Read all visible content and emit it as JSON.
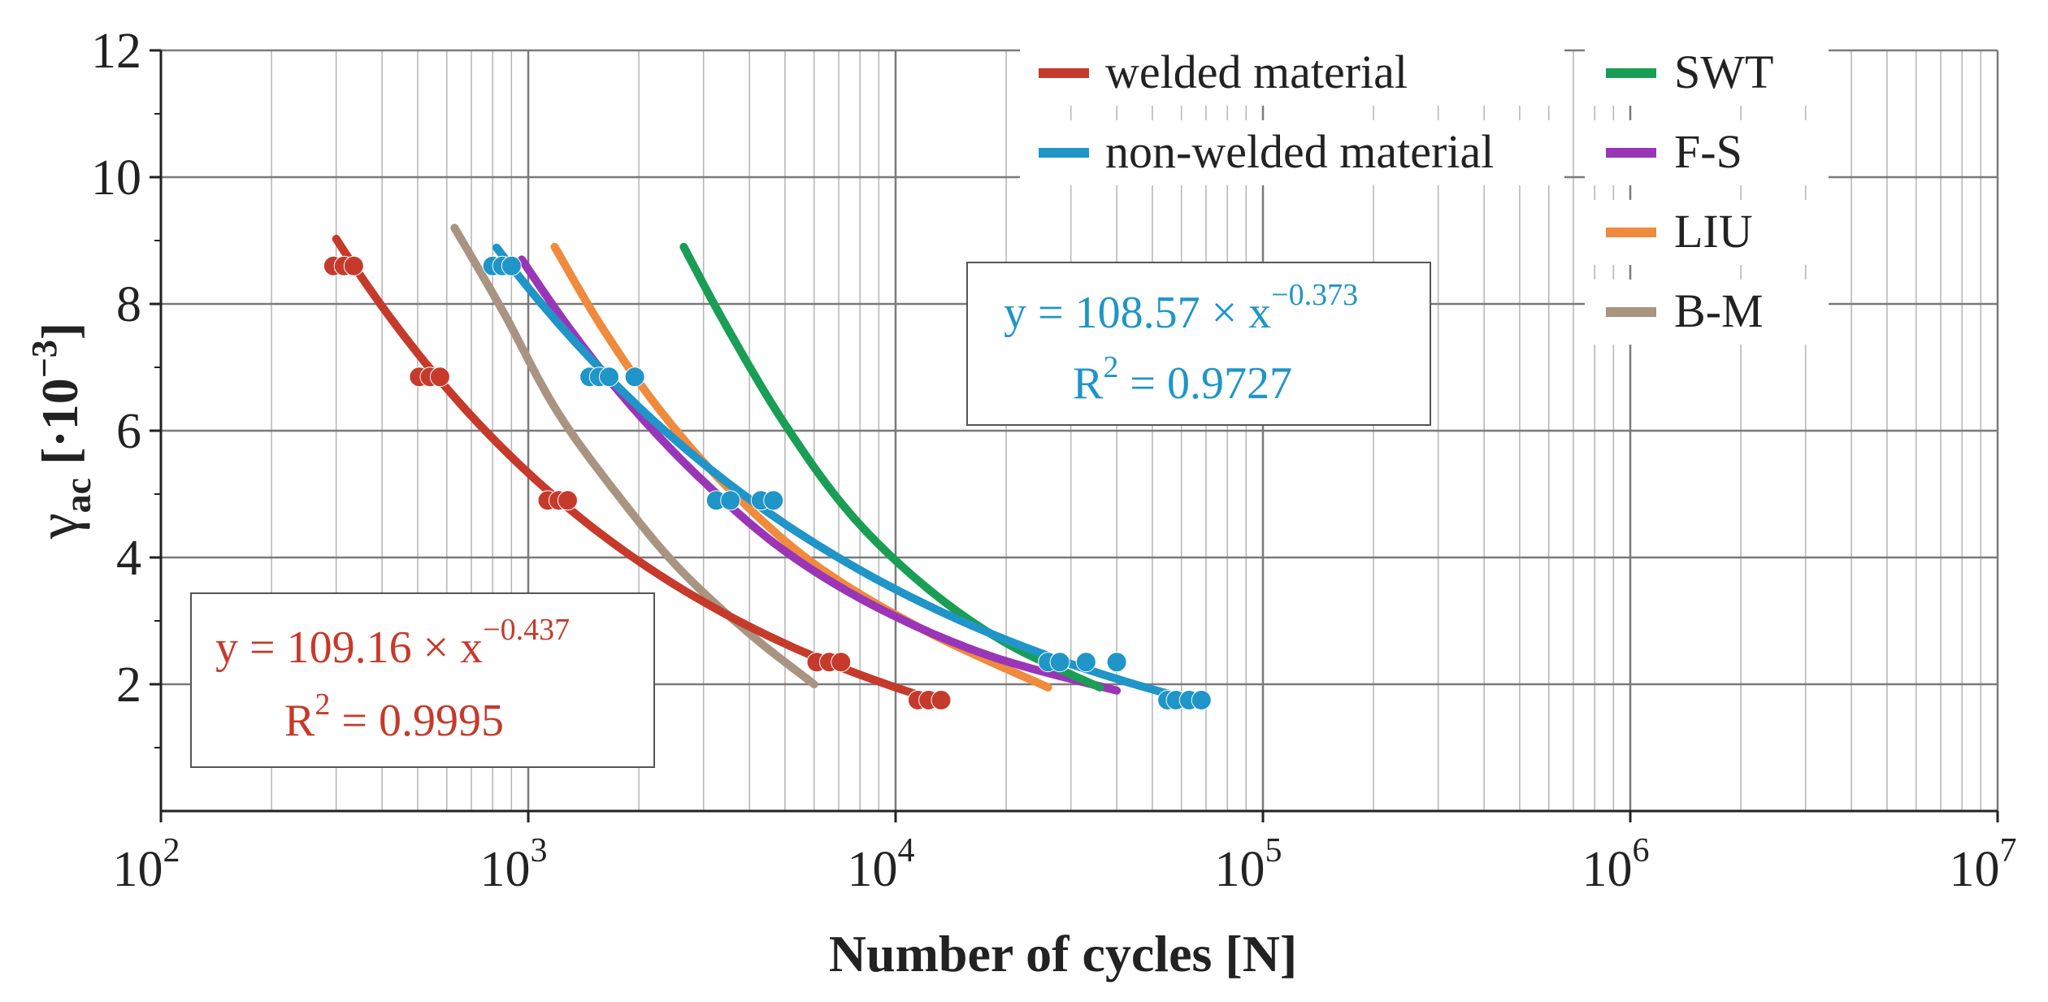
{
  "chart_data": {
    "type": "line",
    "xlabel": "Number of cycles [N]",
    "ylabel_main": "γ",
    "ylabel_sub": "ac",
    "ylabel_units": " [·10",
    "ylabel_exp": "−3",
    "ylabel_close": "]",
    "xscale": "log",
    "xlim": [
      100,
      10000000
    ],
    "ylim": [
      0,
      12
    ],
    "grid": true,
    "legend_position": "top-right",
    "x_ticks": [
      {
        "value": 100,
        "base": "10",
        "exp": "2"
      },
      {
        "value": 1000,
        "base": "10",
        "exp": "3"
      },
      {
        "value": 10000,
        "base": "10",
        "exp": "4"
      },
      {
        "value": 100000,
        "base": "10",
        "exp": "5"
      },
      {
        "value": 1000000,
        "base": "10",
        "exp": "6"
      },
      {
        "value": 10000000,
        "base": "10",
        "exp": "7"
      }
    ],
    "y_ticks": [
      2,
      4,
      6,
      8,
      10,
      12
    ],
    "series": [
      {
        "name": "welded material",
        "color": "#c63a2b",
        "fit": {
          "a": 109.16,
          "b": -0.437,
          "x_range": [
            300,
            13500
          ]
        },
        "points": [
          {
            "x": 295,
            "y": 8.6
          },
          {
            "x": 315,
            "y": 8.6
          },
          {
            "x": 335,
            "y": 8.6
          },
          {
            "x": 505,
            "y": 6.85
          },
          {
            "x": 540,
            "y": 6.85
          },
          {
            "x": 575,
            "y": 6.85
          },
          {
            "x": 1130,
            "y": 4.9
          },
          {
            "x": 1210,
            "y": 4.9
          },
          {
            "x": 1280,
            "y": 4.9
          },
          {
            "x": 6100,
            "y": 2.35
          },
          {
            "x": 6600,
            "y": 2.35
          },
          {
            "x": 7100,
            "y": 2.35
          },
          {
            "x": 11500,
            "y": 1.75
          },
          {
            "x": 12300,
            "y": 1.75
          },
          {
            "x": 13300,
            "y": 1.75
          }
        ]
      },
      {
        "name": "non-welded material",
        "color": "#1f95c8",
        "fit": {
          "a": 108.57,
          "b": -0.373,
          "x_range": [
            820,
            68000
          ]
        },
        "points": [
          {
            "x": 800,
            "y": 8.6
          },
          {
            "x": 850,
            "y": 8.6
          },
          {
            "x": 900,
            "y": 8.6
          },
          {
            "x": 1470,
            "y": 6.85
          },
          {
            "x": 1560,
            "y": 6.85
          },
          {
            "x": 1660,
            "y": 6.85
          },
          {
            "x": 1950,
            "y": 6.85
          },
          {
            "x": 3250,
            "y": 4.9
          },
          {
            "x": 3550,
            "y": 4.9
          },
          {
            "x": 4300,
            "y": 4.9
          },
          {
            "x": 4650,
            "y": 4.9
          },
          {
            "x": 26000,
            "y": 2.35
          },
          {
            "x": 28000,
            "y": 2.35
          },
          {
            "x": 33000,
            "y": 2.35
          },
          {
            "x": 40000,
            "y": 2.35
          },
          {
            "x": 55000,
            "y": 1.75
          },
          {
            "x": 58000,
            "y": 1.75
          },
          {
            "x": 63000,
            "y": 1.75
          },
          {
            "x": 68000,
            "y": 1.75
          }
        ]
      },
      {
        "name": "SWT",
        "color": "#1a9e55",
        "curve": [
          {
            "x": 2650,
            "y": 8.9
          },
          {
            "x": 3500,
            "y": 7.6
          },
          {
            "x": 5000,
            "y": 6.1
          },
          {
            "x": 7500,
            "y": 4.7
          },
          {
            "x": 12000,
            "y": 3.55
          },
          {
            "x": 20000,
            "y": 2.65
          },
          {
            "x": 36000,
            "y": 1.95
          }
        ]
      },
      {
        "name": "F-S",
        "color": "#9b35b8",
        "curve": [
          {
            "x": 960,
            "y": 8.7
          },
          {
            "x": 1300,
            "y": 7.6
          },
          {
            "x": 1900,
            "y": 6.4
          },
          {
            "x": 3000,
            "y": 5.2
          },
          {
            "x": 5000,
            "y": 4.1
          },
          {
            "x": 9000,
            "y": 3.2
          },
          {
            "x": 18000,
            "y": 2.45
          },
          {
            "x": 40000,
            "y": 1.9
          }
        ]
      },
      {
        "name": "LIU",
        "color": "#f08a3c",
        "curve": [
          {
            "x": 1180,
            "y": 8.9
          },
          {
            "x": 1600,
            "y": 7.6
          },
          {
            "x": 2300,
            "y": 6.3
          },
          {
            "x": 3500,
            "y": 5.1
          },
          {
            "x": 6000,
            "y": 3.9
          },
          {
            "x": 12000,
            "y": 2.85
          },
          {
            "x": 26000,
            "y": 1.95
          }
        ]
      },
      {
        "name": "B-M",
        "color": "#a89480",
        "curve": [
          {
            "x": 630,
            "y": 9.2
          },
          {
            "x": 850,
            "y": 7.9
          },
          {
            "x": 1200,
            "y": 6.3
          },
          {
            "x": 1800,
            "y": 4.9
          },
          {
            "x": 2600,
            "y": 3.8
          },
          {
            "x": 4000,
            "y": 2.8
          },
          {
            "x": 6000,
            "y": 2.0
          }
        ]
      }
    ],
    "annotations": [
      {
        "series": "non-welded material",
        "color": "#1f95c8",
        "eq_prefix": "y = 108.57 × x",
        "eq_exp": "−0.373",
        "r2_prefix": "R",
        "r2_exp": "2",
        "r2_value": " = 0.9727"
      },
      {
        "series": "welded material",
        "color": "#c63a2b",
        "eq_prefix": "y = 109.16 × x",
        "eq_exp": "−0.437",
        "r2_prefix": "R",
        "r2_exp": "2",
        "r2_value": " = 0.9995"
      }
    ]
  }
}
